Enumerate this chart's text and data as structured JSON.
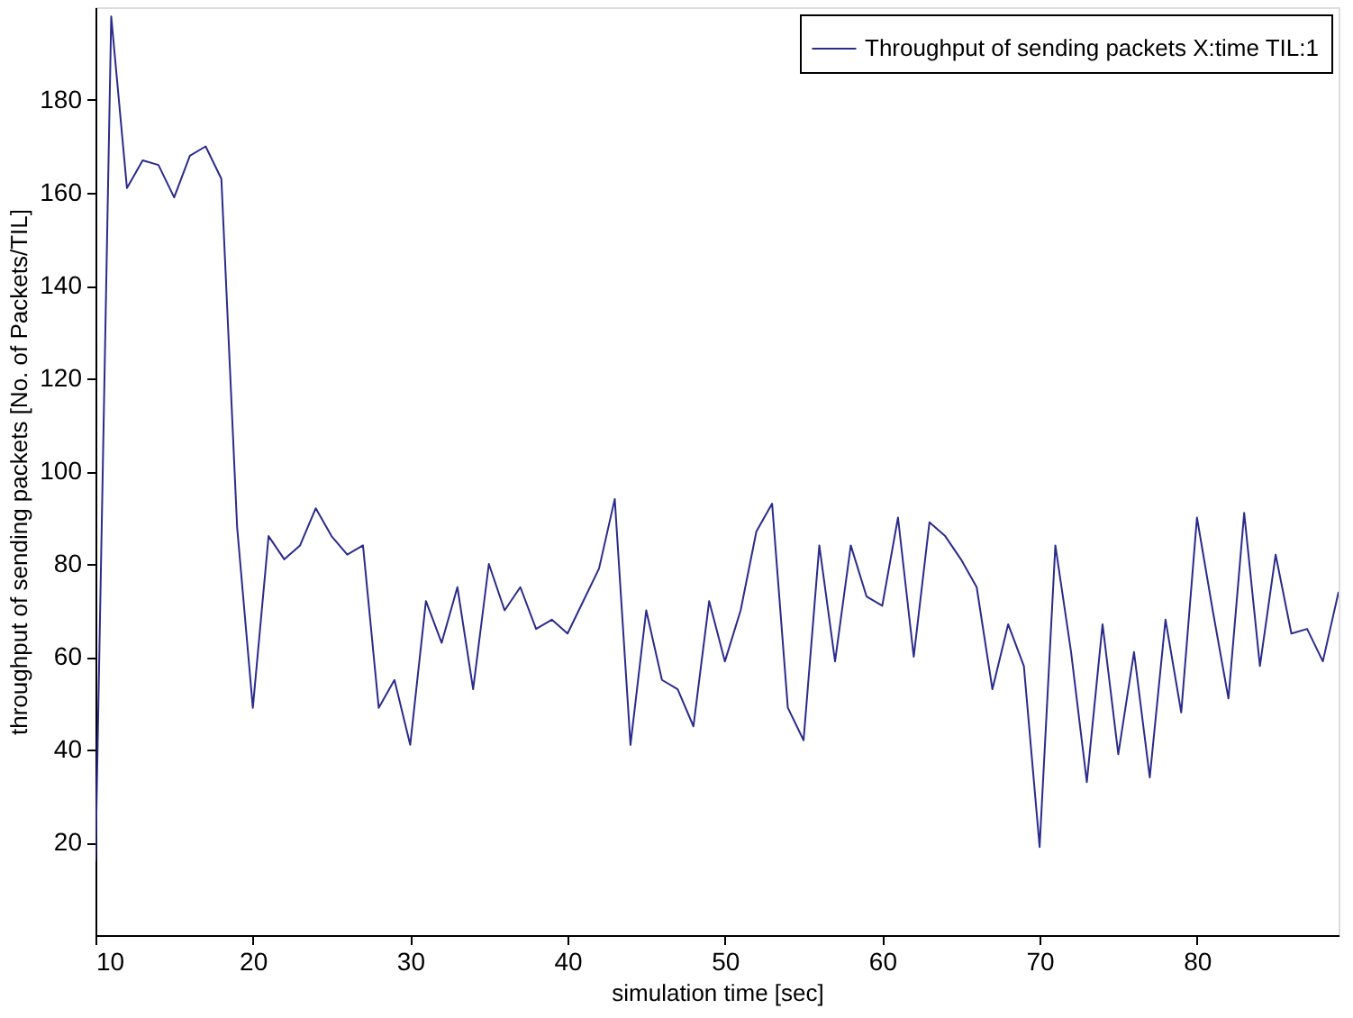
{
  "chart_data": {
    "type": "line",
    "xlabel": "simulation time [sec]",
    "ylabel": "throughput of sending packets [No. of Packets/TIL]",
    "x": [
      10,
      11,
      12,
      13,
      14,
      15,
      16,
      17,
      18,
      19,
      20,
      21,
      22,
      23,
      24,
      25,
      26,
      27,
      28,
      29,
      30,
      31,
      32,
      33,
      34,
      35,
      36,
      37,
      38,
      39,
      40,
      41,
      42,
      43,
      44,
      45,
      46,
      47,
      48,
      49,
      50,
      51,
      52,
      53,
      54,
      55,
      56,
      57,
      58,
      59,
      60,
      61,
      62,
      63,
      64,
      65,
      66,
      67,
      68,
      69,
      70,
      71,
      72,
      73,
      74,
      75,
      76,
      77,
      78,
      79,
      80,
      81,
      82,
      83,
      84,
      85,
      86,
      87,
      88,
      89
    ],
    "series": [
      {
        "name": "Throughput of sending packets X:time TIL:1",
        "color": "#2b2b8c",
        "values": [
          16,
          198,
          161,
          167,
          166,
          159,
          168,
          170,
          163,
          88,
          49,
          86,
          81,
          84,
          92,
          86,
          82,
          84,
          49,
          55,
          41,
          72,
          63,
          75,
          53,
          80,
          70,
          75,
          66,
          68,
          65,
          72,
          79,
          94,
          41,
          70,
          55,
          53,
          45,
          72,
          59,
          70,
          87,
          93,
          49,
          42,
          84,
          59,
          84,
          73,
          71,
          90,
          60,
          89,
          86,
          81,
          75,
          53,
          67,
          58,
          19,
          84,
          61,
          33,
          67,
          39,
          61,
          34,
          68,
          48,
          90,
          70,
          51,
          91,
          58,
          82,
          65,
          66,
          59,
          74
        ]
      }
    ],
    "xlim": [
      10,
      89
    ],
    "xticks": [
      10,
      20,
      30,
      40,
      50,
      60,
      70,
      80
    ],
    "ylim": [
      0,
      200
    ],
    "yticks": [
      20,
      40,
      60,
      80,
      100,
      120,
      140,
      160,
      180
    ],
    "grid": false,
    "legend": "top right",
    "marker": "none",
    "line_style": "solid"
  }
}
